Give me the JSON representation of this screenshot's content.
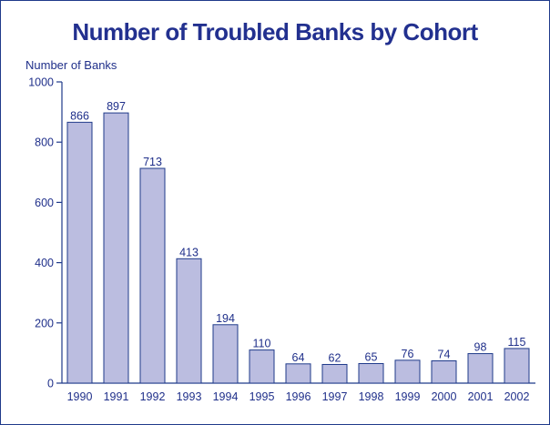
{
  "chart_data": {
    "type": "bar",
    "title": "Number of Troubled Banks by Cohort",
    "ylabel": "Number of Banks",
    "xlabel": "",
    "categories": [
      "1990",
      "1991",
      "1992",
      "1993",
      "1994",
      "1995",
      "1996",
      "1997",
      "1998",
      "1999",
      "2000",
      "2001",
      "2002"
    ],
    "values": [
      866,
      897,
      713,
      413,
      194,
      110,
      64,
      62,
      65,
      76,
      74,
      98,
      115
    ],
    "ylim": [
      0,
      1000
    ],
    "yticks": [
      0,
      200,
      400,
      600,
      800,
      1000
    ],
    "grid": false,
    "colors": {
      "bar_fill": "#bbbde0",
      "bar_stroke": "#1f3a8a",
      "text": "#1f2f8a",
      "title": "#22308f"
    }
  }
}
